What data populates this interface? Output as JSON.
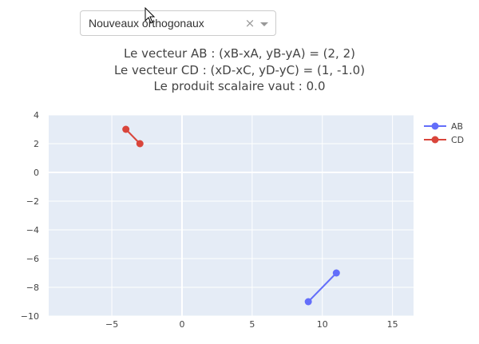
{
  "dropdown": {
    "value": "Nouveaux orthogonaux",
    "clear": "×",
    "open_icon": "chevron-down-icon"
  },
  "info": {
    "line1": "Le vecteur AB : (xB-xA, yB-yA) = (2, 2)",
    "line2": "Le vecteur CD : (xD-xC, yD-yC) = (1, -1.0)",
    "line3": "Le produit scalaire vaut : 0.0"
  },
  "chart_data": {
    "type": "line",
    "title": "",
    "xlabel": "",
    "ylabel": "",
    "xlim": [
      -9.5,
      16.5
    ],
    "ylim": [
      -10,
      4
    ],
    "xticks": [
      -5,
      0,
      5,
      10,
      15
    ],
    "yticks": [
      4,
      2,
      0,
      -2,
      -4,
      -6,
      -8,
      -10
    ],
    "grid": true,
    "legend_position": "top-right",
    "series": [
      {
        "name": "AB",
        "color": "#636efa",
        "x": [
          9,
          11
        ],
        "y": [
          -9,
          -7
        ]
      },
      {
        "name": "CD",
        "color": "#d9453b",
        "x": [
          -4,
          -3
        ],
        "y": [
          3,
          2
        ]
      }
    ]
  }
}
